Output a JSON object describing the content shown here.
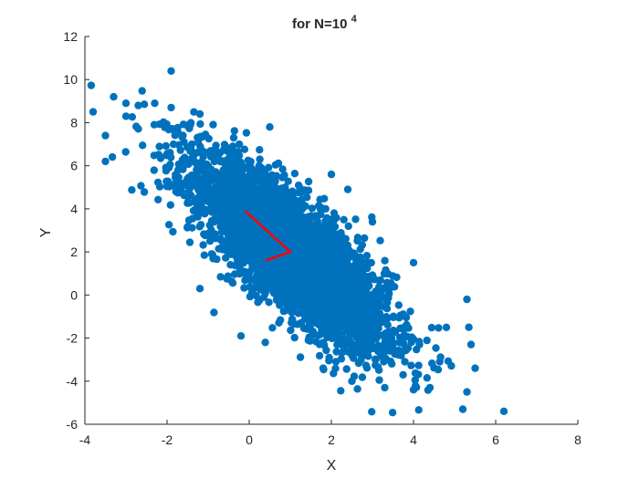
{
  "chart_data": {
    "type": "scatter",
    "title": "for N=10",
    "title_superscript": "4",
    "xlabel": "X",
    "ylabel": "Y",
    "xlim": [
      -4,
      8
    ],
    "ylim": [
      -6,
      12
    ],
    "xticks": [
      -4,
      -2,
      0,
      2,
      4,
      6,
      8
    ],
    "yticks": [
      -6,
      -4,
      -2,
      0,
      2,
      4,
      6,
      8,
      10,
      12
    ],
    "grid": false,
    "box": "left-bottom axes only",
    "series": [
      {
        "kind": "scatter",
        "color": "#0072BD",
        "count": 10000,
        "distribution": {
          "type": "bivariate-normal",
          "mean": [
            1,
            2
          ],
          "std": [
            1.2,
            2.2
          ],
          "correlation": -0.8
        },
        "visible_outliers": [
          [
            -3.8,
            8.5
          ],
          [
            -3.5,
            7.4
          ],
          [
            -3.5,
            6.2
          ],
          [
            -3.3,
            9.2
          ],
          [
            -3.0,
            8.9
          ],
          [
            -3.0,
            8.3
          ],
          [
            -2.7,
            8.8
          ],
          [
            -1.9,
            10.4
          ],
          [
            -1.9,
            8.7
          ],
          [
            -2.3,
            8.9
          ],
          [
            -1.2,
            8.4
          ],
          [
            -0.2,
            -1.9
          ],
          [
            0.5,
            7.8
          ],
          [
            -1.2,
            0.3
          ],
          [
            6.2,
            -5.4
          ],
          [
            5.3,
            -4.5
          ],
          [
            5.2,
            -5.3
          ],
          [
            5.5,
            -3.4
          ],
          [
            5.4,
            -2.3
          ],
          [
            5.3,
            -0.2
          ],
          [
            4.8,
            -1.5
          ],
          [
            4.4,
            -4.3
          ],
          [
            4.0,
            -4.4
          ],
          [
            2.5,
            -4.0
          ],
          [
            3.3,
            -4.3
          ],
          [
            1.8,
            -3.4
          ],
          [
            2.0,
            5.6
          ],
          [
            2.4,
            4.9
          ],
          [
            3.0,
            3.4
          ],
          [
            4.0,
            1.5
          ]
        ]
      },
      {
        "kind": "line",
        "color": "#ff0000",
        "description": "principal axes drawn from the sample mean",
        "points": [
          [
            -0.1,
            3.9
          ],
          [
            1.0,
            2.0
          ],
          [
            0.4,
            1.6
          ]
        ]
      }
    ]
  }
}
